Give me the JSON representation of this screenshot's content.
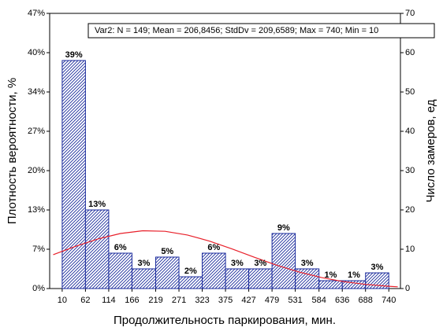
{
  "chart_data": {
    "type": "histogram",
    "annotation": "Var2:  N = 149; Mean = 206,8456; StdDv = 209,6589; Max = 740; Min = 10",
    "xlabel": "Продолжительность паркирования, мин.",
    "ylabel": "Плотность вероятности, %",
    "y2label": "Число замеров, ед",
    "bins": [
      10,
      62,
      114,
      166,
      219,
      271,
      323,
      375,
      427,
      479,
      531,
      584,
      636,
      688,
      740
    ],
    "values": [
      38.93,
      13.42,
      6.04,
      3.36,
      5.37,
      2.01,
      6.04,
      3.36,
      3.36,
      9.4,
      3.36,
      1.34,
      1.34,
      2.68
    ],
    "value_labels": [
      "39%",
      "13%",
      "6%",
      "3%",
      "5%",
      "2%",
      "6%",
      "3%",
      "3%",
      "9%",
      "3%",
      "1%",
      "1%",
      "3%"
    ],
    "color": "#1a2a9c",
    "fit_line": {
      "color": "#e8202a",
      "x": [
        -10,
        40,
        90,
        140,
        190,
        240,
        290,
        340,
        390,
        440,
        490,
        540,
        590,
        640,
        690,
        740,
        760
      ],
      "values": [
        5.79,
        7.21,
        8.47,
        9.4,
        9.86,
        9.77,
        9.14,
        8.08,
        6.75,
        5.33,
        3.97,
        2.8,
        1.86,
        1.17,
        0.7,
        0.39,
        0.3
      ]
    },
    "xlim": [
      -18,
      766
    ],
    "xticks": [
      10,
      62,
      114,
      166,
      219,
      271,
      323,
      375,
      427,
      479,
      531,
      584,
      636,
      688,
      740
    ],
    "ylim": [
      0,
      46.98
    ],
    "yticks": [
      {
        "value": 0,
        "label": "0%"
      },
      {
        "value": 6.71,
        "label": "7%"
      },
      {
        "value": 13.42,
        "label": "13%"
      },
      {
        "value": 20.13,
        "label": "20%"
      },
      {
        "value": 26.85,
        "label": "27%"
      },
      {
        "value": 33.56,
        "label": "34%"
      },
      {
        "value": 40.27,
        "label": "40%"
      },
      {
        "value": 46.98,
        "label": "47%"
      }
    ],
    "y2lim": [
      0,
      70
    ],
    "y2ticks": [
      0,
      10,
      20,
      30,
      40,
      50,
      60,
      70
    ]
  }
}
